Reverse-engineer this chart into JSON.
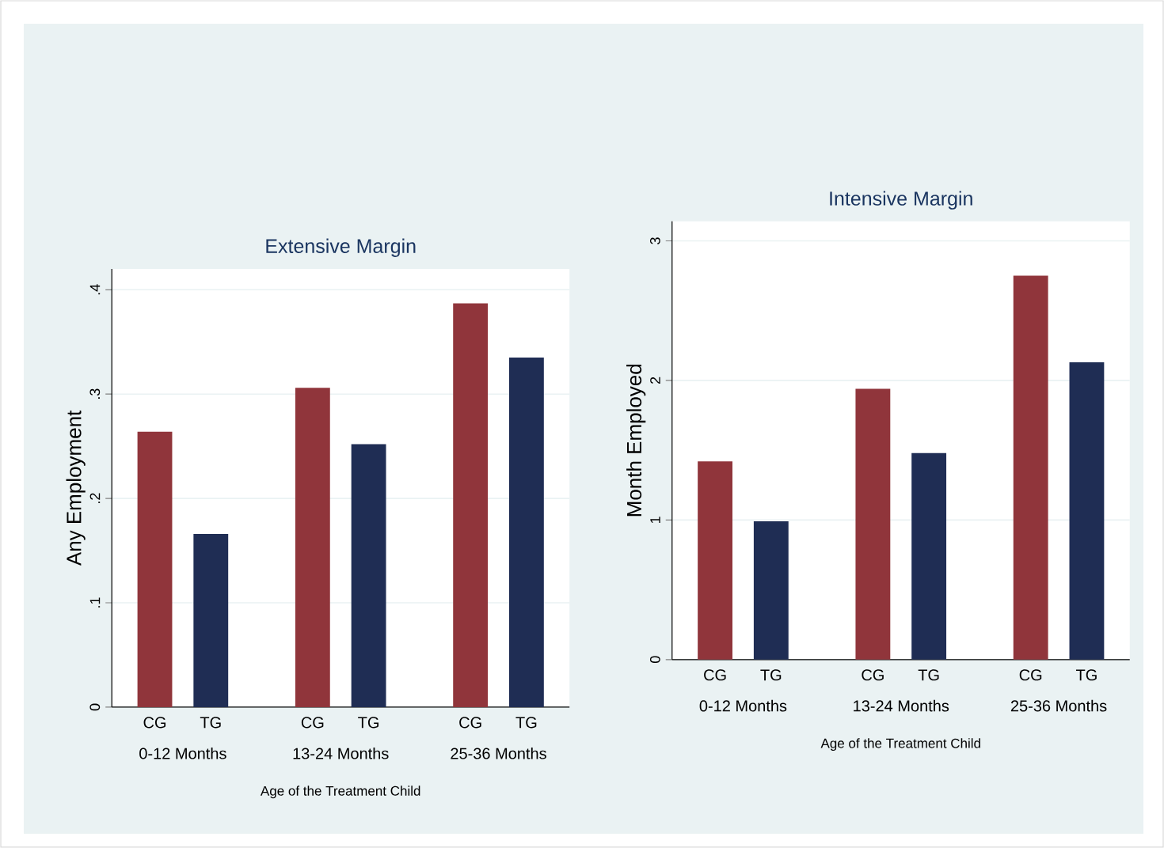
{
  "chart_data": [
    {
      "type": "bar",
      "title": "Extensive Margin",
      "xlabel": "Age of the Treatment Child",
      "ylabel": "Any Employment",
      "categories": [
        "0-12 Months",
        "13-24 Months",
        "25-36 Months"
      ],
      "series": [
        {
          "name": "CG",
          "color": "#90353b",
          "values": [
            0.264,
            0.306,
            0.387
          ]
        },
        {
          "name": "TG",
          "color": "#1f2d54",
          "values": [
            0.166,
            0.252,
            0.335
          ]
        }
      ],
      "ylim": [
        0,
        0.42
      ],
      "yticks": [
        0,
        {
          "value": 0.1,
          "label": ".1"
        },
        {
          "value": 0.2,
          "label": ".2"
        },
        {
          "value": 0.3,
          "label": ".3"
        },
        {
          "value": 0.4,
          "label": ".4"
        }
      ],
      "grid": "y",
      "legend": false
    },
    {
      "type": "bar",
      "title": "Intensive Margin",
      "xlabel": "Age of the Treatment Child",
      "ylabel": "Month Employed",
      "categories": [
        "0-12 Months",
        "13-24 Months",
        "25-36 Months"
      ],
      "series": [
        {
          "name": "CG",
          "color": "#90353b",
          "values": [
            1.42,
            1.94,
            2.75
          ]
        },
        {
          "name": "TG",
          "color": "#1f2d54",
          "values": [
            0.99,
            1.48,
            2.13
          ]
        }
      ],
      "ylim": [
        0,
        3.14
      ],
      "yticks": [
        0,
        1,
        2,
        3
      ],
      "grid": "y",
      "legend": false
    }
  ]
}
